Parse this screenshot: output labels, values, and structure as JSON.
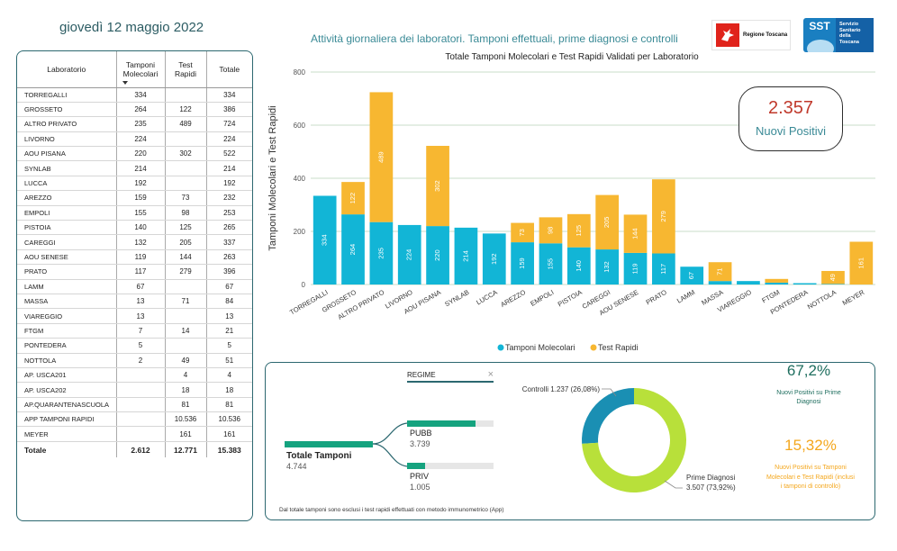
{
  "header": {
    "date": "giovedì 12 maggio 2022",
    "title": "Attività giornaliera dei laboratori. Tamponi effettuali, prime diagnosi e controlli",
    "logo_rt_text": "Regione Toscana",
    "logo_sst_left": "SST",
    "logo_sst_right": [
      "Servizio",
      "Sanitario",
      "della",
      "Toscana"
    ]
  },
  "table": {
    "headers": {
      "lab": "Laboratorio",
      "mol_1": "Tamponi",
      "mol_2": "Molecolari",
      "rap_1": "Test",
      "rap_2": "Rapidi",
      "tot": "Totale"
    },
    "rows": [
      {
        "lab": "TORREGALLI",
        "mol": "334",
        "rap": "",
        "tot": "334"
      },
      {
        "lab": "GROSSETO",
        "mol": "264",
        "rap": "122",
        "tot": "386"
      },
      {
        "lab": "ALTRO PRIVATO",
        "mol": "235",
        "rap": "489",
        "tot": "724"
      },
      {
        "lab": "LIVORNO",
        "mol": "224",
        "rap": "",
        "tot": "224"
      },
      {
        "lab": "AOU PISANA",
        "mol": "220",
        "rap": "302",
        "tot": "522"
      },
      {
        "lab": "SYNLAB",
        "mol": "214",
        "rap": "",
        "tot": "214"
      },
      {
        "lab": "LUCCA",
        "mol": "192",
        "rap": "",
        "tot": "192"
      },
      {
        "lab": "AREZZO",
        "mol": "159",
        "rap": "73",
        "tot": "232"
      },
      {
        "lab": "EMPOLI",
        "mol": "155",
        "rap": "98",
        "tot": "253"
      },
      {
        "lab": "PISTOIA",
        "mol": "140",
        "rap": "125",
        "tot": "265"
      },
      {
        "lab": "CAREGGI",
        "mol": "132",
        "rap": "205",
        "tot": "337"
      },
      {
        "lab": "AOU SENESE",
        "mol": "119",
        "rap": "144",
        "tot": "263"
      },
      {
        "lab": "PRATO",
        "mol": "117",
        "rap": "279",
        "tot": "396"
      },
      {
        "lab": "LAMM",
        "mol": "67",
        "rap": "",
        "tot": "67"
      },
      {
        "lab": "MASSA",
        "mol": "13",
        "rap": "71",
        "tot": "84"
      },
      {
        "lab": "VIAREGGIO",
        "mol": "13",
        "rap": "",
        "tot": "13"
      },
      {
        "lab": "FTGM",
        "mol": "7",
        "rap": "14",
        "tot": "21"
      },
      {
        "lab": "PONTEDERA",
        "mol": "5",
        "rap": "",
        "tot": "5"
      },
      {
        "lab": "NOTTOLA",
        "mol": "2",
        "rap": "49",
        "tot": "51"
      },
      {
        "lab": "AP. USCA201",
        "mol": "",
        "rap": "4",
        "tot": "4"
      },
      {
        "lab": "AP. USCA202",
        "mol": "",
        "rap": "18",
        "tot": "18"
      },
      {
        "lab": "AP.QUARANTENASCUOLA",
        "mol": "",
        "rap": "81",
        "tot": "81"
      },
      {
        "lab": "APP TAMPONI RAPIDI",
        "mol": "",
        "rap": "10.536",
        "tot": "10.536"
      },
      {
        "lab": "MEYER",
        "mol": "",
        "rap": "161",
        "tot": "161"
      }
    ],
    "total": {
      "lab": "Totale",
      "mol": "2.612",
      "rap": "12.771",
      "tot": "15.383"
    }
  },
  "chart_data": {
    "type": "bar",
    "stacked": true,
    "title": "Totale Tamponi Molecolari e Test Rapidi Validati per Laboratorio",
    "ylabel": "Tamponi Molecolari e Test Rapidi",
    "xlabel": "",
    "ylim": [
      0,
      800
    ],
    "yticks": [
      0,
      200,
      400,
      600,
      800
    ],
    "grid": true,
    "legend_position": "bottom",
    "categories": [
      "TORREGALLI",
      "GROSSETO",
      "ALTRO PRIVATO",
      "LIVORNO",
      "AOU PISANA",
      "SYNLAB",
      "LUCCA",
      "AREZZO",
      "EMPOLI",
      "PISTOIA",
      "CAREGGI",
      "AOU SENESE",
      "PRATO",
      "LAMM",
      "MASSA",
      "VIAREGGIO",
      "FTGM",
      "PONTEDERA",
      "NOTTOLA",
      "MEYER"
    ],
    "series": [
      {
        "name": "Tamponi Molecolari",
        "color": "#12b5d6",
        "values": [
          334,
          264,
          235,
          224,
          220,
          214,
          192,
          159,
          155,
          140,
          132,
          119,
          117,
          67,
          13,
          13,
          7,
          5,
          2,
          0
        ],
        "labels": [
          "334",
          "264",
          "235",
          "224",
          "220",
          "214",
          "192",
          "159",
          "155",
          "140",
          "132",
          "119",
          "117",
          "67",
          "",
          "",
          "",
          "",
          "",
          ""
        ]
      },
      {
        "name": "Test Rapidi",
        "color": "#f7b731",
        "values": [
          0,
          122,
          489,
          0,
          302,
          0,
          0,
          73,
          98,
          125,
          205,
          144,
          279,
          0,
          71,
          0,
          14,
          0,
          49,
          161
        ],
        "labels": [
          "",
          "122",
          "489",
          "",
          "302",
          "",
          "",
          "73",
          "98",
          "125",
          "205",
          "144",
          "279",
          "",
          "71",
          "",
          "",
          "",
          "49",
          "161"
        ]
      }
    ]
  },
  "kpi": {
    "value": "2.357",
    "label": "Nuovi Positivi"
  },
  "decomposition": {
    "filter_label": "REGIME",
    "filter_close": "×",
    "root_label": "Totale Tamponi",
    "root_value": "4.744",
    "branches": [
      {
        "label": "PUBB",
        "value": "3.739",
        "fraction": 0.788
      },
      {
        "label": "PRIV",
        "value": "1.005",
        "fraction": 0.212
      }
    ],
    "footnote": "Dal totale tamponi sono esclusi i test rapidi effettuati con metodo immunometrico (App)"
  },
  "donut": {
    "segments": [
      {
        "label": "Controlli 1.237 (26,08%)",
        "share": 26.08,
        "color": "#1a8fb3"
      },
      {
        "label_1": "Prime Diagnosi",
        "label_2": "3.507 (73,92%)",
        "share": 73.92,
        "color": "#b8e03a"
      }
    ]
  },
  "stats": {
    "pct1": "67,2%",
    "pct1_label_1": "Nuovi Positivi su Prime",
    "pct1_label_2": "Diagnosi",
    "pct2": "15,32%",
    "pct2_label_1": "Nuovi Positivi su Tamponi",
    "pct2_label_2": "Molecolari e Test Rapidi (inclusi",
    "pct2_label_3": "i tamponi di controllo)"
  }
}
